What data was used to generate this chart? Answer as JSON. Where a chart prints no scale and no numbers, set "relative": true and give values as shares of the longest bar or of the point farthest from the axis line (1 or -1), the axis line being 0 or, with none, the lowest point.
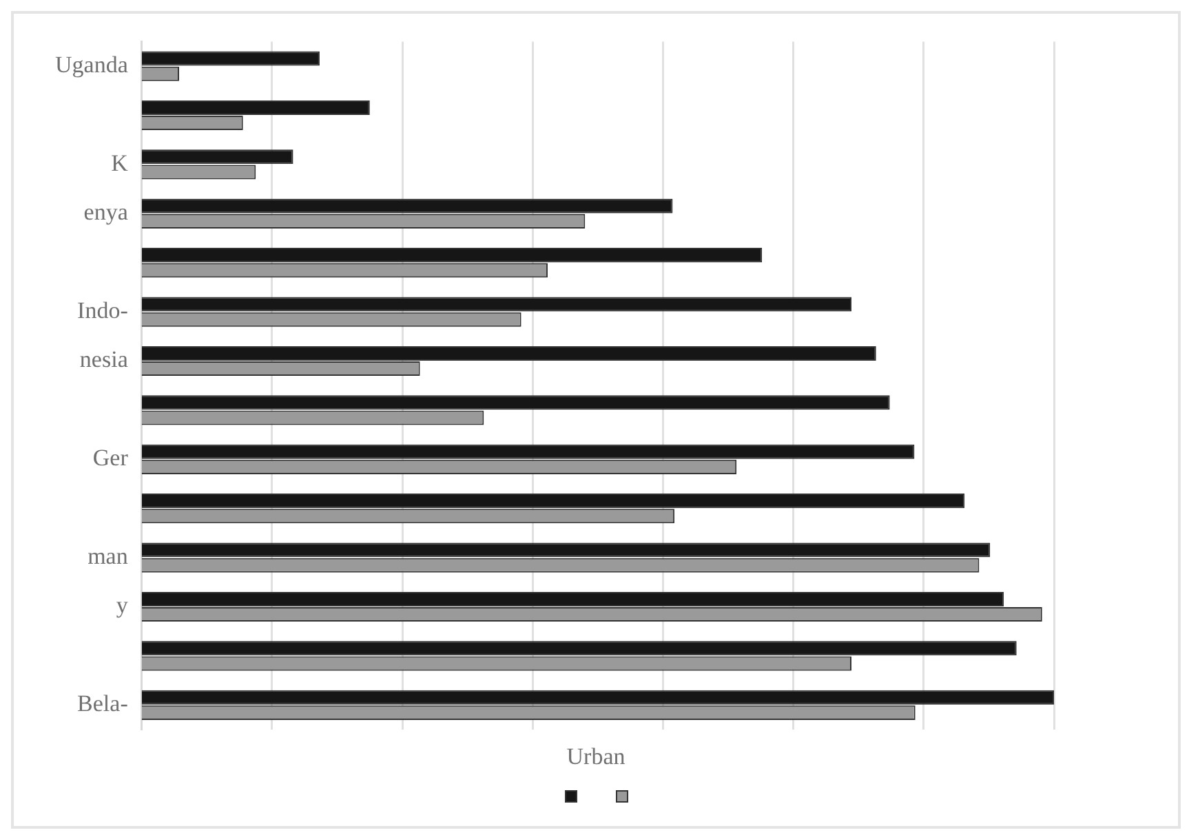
{
  "chart_data": {
    "type": "bar",
    "orientation": "horizontal",
    "relative": true,
    "grid": "x",
    "annotations": [
      "Urban"
    ],
    "categories": [
      "Uganda",
      null,
      "K",
      "enya",
      null,
      "Indo-",
      "nesia",
      null,
      "Ger",
      null,
      "man",
      "y",
      null,
      "Bela-"
    ],
    "series": [
      {
        "color": "#161616",
        "values": [
          0.195,
          0.25,
          0.166,
          0.582,
          0.68,
          0.778,
          0.805,
          0.82,
          0.847,
          0.902,
          0.93,
          0.945,
          0.959,
          1
        ]
      },
      {
        "color": "#9a9a9a",
        "values": [
          0.041,
          0.111,
          0.125,
          0.486,
          0.445,
          0.416,
          0.305,
          0.375,
          0.652,
          0.584,
          0.918,
          0.987,
          0.778,
          0.848
        ]
      }
    ]
  }
}
